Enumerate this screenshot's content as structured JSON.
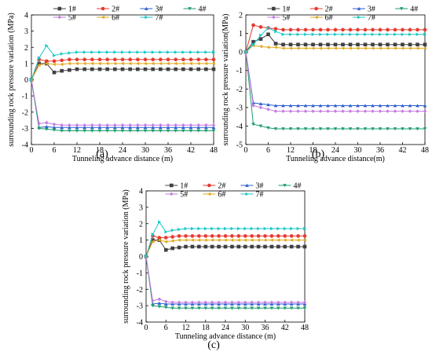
{
  "figure": {
    "panel_labels": [
      "(a)",
      "(b)",
      "(c)"
    ]
  },
  "chart_data": [
    {
      "type": "line",
      "panel": "(a)",
      "xlabel": "Tunneling advance distance (m)",
      "ylabel": "surrounding rock pressure variation (MPa)",
      "xlim": [
        0,
        48
      ],
      "ylim": [
        -4,
        4
      ],
      "xticks": [
        0,
        6,
        12,
        18,
        24,
        30,
        36,
        42,
        48
      ],
      "yticks": [
        -4,
        -3,
        -2,
        -1,
        0,
        1,
        2,
        3,
        4
      ],
      "grid": false,
      "legend_position": "top",
      "x": [
        0,
        2,
        4,
        6,
        8,
        10,
        12,
        14,
        16,
        18,
        20,
        22,
        24,
        26,
        28,
        30,
        32,
        34,
        36,
        38,
        40,
        42,
        44,
        46,
        48
      ],
      "series": [
        {
          "name": "1#",
          "color": "#404040",
          "marker": "square",
          "values": [
            0,
            1.0,
            1.0,
            0.45,
            0.55,
            0.6,
            0.65,
            0.65,
            0.65,
            0.65,
            0.65,
            0.65,
            0.65,
            0.65,
            0.65,
            0.65,
            0.65,
            0.65,
            0.65,
            0.65,
            0.65,
            0.65,
            0.65,
            0.65,
            0.65
          ]
        },
        {
          "name": "2#",
          "color": "#e8392f",
          "marker": "circle",
          "values": [
            0,
            1.25,
            1.15,
            1.15,
            1.2,
            1.25,
            1.25,
            1.25,
            1.25,
            1.25,
            1.25,
            1.25,
            1.25,
            1.25,
            1.25,
            1.25,
            1.25,
            1.25,
            1.25,
            1.25,
            1.25,
            1.25,
            1.25,
            1.25,
            1.25
          ]
        },
        {
          "name": "3#",
          "color": "#2e5fd1",
          "marker": "triangle-up",
          "values": [
            0,
            -2.95,
            -2.9,
            -2.95,
            -2.95,
            -2.95,
            -2.95,
            -2.95,
            -2.95,
            -2.95,
            -2.95,
            -2.95,
            -2.95,
            -2.95,
            -2.95,
            -2.95,
            -2.95,
            -2.95,
            -2.95,
            -2.95,
            -2.95,
            -2.95,
            -2.95,
            -2.95,
            -2.95
          ]
        },
        {
          "name": "4#",
          "color": "#1e9e6e",
          "marker": "triangle-down",
          "values": [
            0,
            -3.0,
            -3.05,
            -3.1,
            -3.15,
            -3.15,
            -3.15,
            -3.15,
            -3.15,
            -3.15,
            -3.15,
            -3.15,
            -3.15,
            -3.15,
            -3.15,
            -3.15,
            -3.15,
            -3.15,
            -3.15,
            -3.15,
            -3.15,
            -3.15,
            -3.15,
            -3.15,
            -3.15
          ]
        },
        {
          "name": "5#",
          "color": "#c57be0",
          "marker": "diamond",
          "values": [
            0,
            -2.7,
            -2.65,
            -2.75,
            -2.8,
            -2.8,
            -2.8,
            -2.8,
            -2.8,
            -2.8,
            -2.8,
            -2.8,
            -2.8,
            -2.8,
            -2.8,
            -2.8,
            -2.8,
            -2.8,
            -2.8,
            -2.8,
            -2.8,
            -2.8,
            -2.8,
            -2.8,
            -2.8
          ]
        },
        {
          "name": "6#",
          "color": "#e0a81b",
          "marker": "triangle-left",
          "values": [
            0,
            0.9,
            1.0,
            0.95,
            0.95,
            1.0,
            1.0,
            1.0,
            1.0,
            1.0,
            1.0,
            1.0,
            1.0,
            1.0,
            1.0,
            1.0,
            1.0,
            1.0,
            1.0,
            1.0,
            1.0,
            1.0,
            1.0,
            1.0,
            1.0
          ]
        },
        {
          "name": "7#",
          "color": "#19c6c8",
          "marker": "triangle-right",
          "values": [
            0,
            1.35,
            2.1,
            1.5,
            1.6,
            1.65,
            1.7,
            1.7,
            1.7,
            1.7,
            1.7,
            1.7,
            1.7,
            1.7,
            1.7,
            1.7,
            1.7,
            1.7,
            1.7,
            1.7,
            1.7,
            1.7,
            1.7,
            1.7,
            1.7
          ]
        }
      ]
    },
    {
      "type": "line",
      "panel": "(b)",
      "xlabel": "Tunneling advance distance(m)",
      "ylabel": "surrounding rock pressure variation(MPa)",
      "xlim": [
        0,
        48
      ],
      "ylim": [
        -5,
        2
      ],
      "xticks": [
        0,
        6,
        12,
        18,
        24,
        30,
        36,
        42,
        48
      ],
      "yticks": [
        -5,
        -4,
        -3,
        -2,
        -1,
        0,
        1,
        2
      ],
      "grid": false,
      "legend_position": "top",
      "x": [
        0,
        2,
        4,
        6,
        8,
        10,
        12,
        14,
        16,
        18,
        20,
        22,
        24,
        26,
        28,
        30,
        32,
        34,
        36,
        38,
        40,
        42,
        44,
        46,
        48
      ],
      "series": [
        {
          "name": "1#",
          "color": "#404040",
          "marker": "square",
          "values": [
            0,
            0.55,
            0.7,
            0.95,
            0.45,
            0.4,
            0.4,
            0.4,
            0.4,
            0.4,
            0.4,
            0.4,
            0.4,
            0.4,
            0.4,
            0.4,
            0.4,
            0.4,
            0.4,
            0.4,
            0.4,
            0.4,
            0.4,
            0.4,
            0.4
          ]
        },
        {
          "name": "2#",
          "color": "#e8392f",
          "marker": "circle",
          "values": [
            0,
            1.45,
            1.35,
            1.3,
            1.25,
            1.2,
            1.2,
            1.2,
            1.2,
            1.2,
            1.2,
            1.2,
            1.2,
            1.2,
            1.2,
            1.2,
            1.2,
            1.2,
            1.2,
            1.2,
            1.2,
            1.2,
            1.2,
            1.2,
            1.2
          ]
        },
        {
          "name": "3#",
          "color": "#2e5fd1",
          "marker": "triangle-up",
          "values": [
            0,
            -2.75,
            -2.8,
            -2.85,
            -2.9,
            -2.9,
            -2.9,
            -2.9,
            -2.9,
            -2.9,
            -2.9,
            -2.9,
            -2.9,
            -2.9,
            -2.9,
            -2.9,
            -2.9,
            -2.9,
            -2.9,
            -2.9,
            -2.9,
            -2.9,
            -2.9,
            -2.9,
            -2.9
          ]
        },
        {
          "name": "4#",
          "color": "#1e9e6e",
          "marker": "triangle-down",
          "values": [
            0,
            -3.9,
            -4.0,
            -4.1,
            -4.15,
            -4.15,
            -4.15,
            -4.15,
            -4.15,
            -4.15,
            -4.15,
            -4.15,
            -4.15,
            -4.15,
            -4.15,
            -4.15,
            -4.15,
            -4.15,
            -4.15,
            -4.15,
            -4.15,
            -4.15,
            -4.15,
            -4.15,
            -4.15
          ]
        },
        {
          "name": "5#",
          "color": "#c57be0",
          "marker": "diamond",
          "values": [
            0,
            -2.9,
            -3.0,
            -3.1,
            -3.2,
            -3.2,
            -3.2,
            -3.2,
            -3.2,
            -3.2,
            -3.2,
            -3.2,
            -3.2,
            -3.2,
            -3.2,
            -3.2,
            -3.2,
            -3.2,
            -3.2,
            -3.2,
            -3.2,
            -3.2,
            -3.2,
            -3.2,
            -3.2
          ]
        },
        {
          "name": "6#",
          "color": "#e0a81b",
          "marker": "triangle-left",
          "values": [
            0,
            0.35,
            0.3,
            0.25,
            0.25,
            0.2,
            0.2,
            0.2,
            0.2,
            0.2,
            0.2,
            0.2,
            0.2,
            0.2,
            0.2,
            0.2,
            0.2,
            0.2,
            0.2,
            0.2,
            0.2,
            0.2,
            0.2,
            0.2,
            0.2
          ]
        },
        {
          "name": "7#",
          "color": "#19c6c8",
          "marker": "triangle-right",
          "values": [
            0,
            0.4,
            0.9,
            1.3,
            1.1,
            0.95,
            0.95,
            0.95,
            0.95,
            0.95,
            0.95,
            0.95,
            0.95,
            0.95,
            0.95,
            0.95,
            0.95,
            0.95,
            0.95,
            0.95,
            0.95,
            0.95,
            0.95,
            0.95,
            0.95
          ]
        }
      ]
    },
    {
      "type": "line",
      "panel": "(c)",
      "xlabel": "Tunneling advance distance (m)",
      "ylabel": "surrounding rock pressure variation (MPa)",
      "xlim": [
        0,
        48
      ],
      "ylim": [
        -4,
        4
      ],
      "xticks": [
        0,
        6,
        12,
        18,
        24,
        30,
        36,
        42,
        48
      ],
      "yticks": [
        -4,
        -3,
        -2,
        -1,
        0,
        1,
        2,
        3,
        4
      ],
      "grid": false,
      "legend_position": "top",
      "x": [
        0,
        2,
        4,
        6,
        8,
        10,
        12,
        14,
        16,
        18,
        20,
        22,
        24,
        26,
        28,
        30,
        32,
        34,
        36,
        38,
        40,
        42,
        44,
        46,
        48
      ],
      "series": [
        {
          "name": "1#",
          "color": "#404040",
          "marker": "square",
          "values": [
            0,
            1.0,
            1.0,
            0.4,
            0.5,
            0.55,
            0.6,
            0.6,
            0.6,
            0.6,
            0.6,
            0.6,
            0.6,
            0.6,
            0.6,
            0.6,
            0.6,
            0.6,
            0.6,
            0.6,
            0.6,
            0.6,
            0.6,
            0.6,
            0.6
          ]
        },
        {
          "name": "2#",
          "color": "#e8392f",
          "marker": "circle",
          "values": [
            0,
            1.25,
            1.15,
            1.15,
            1.2,
            1.25,
            1.25,
            1.25,
            1.25,
            1.25,
            1.25,
            1.25,
            1.25,
            1.25,
            1.25,
            1.25,
            1.25,
            1.25,
            1.25,
            1.25,
            1.25,
            1.25,
            1.25,
            1.25,
            1.25
          ]
        },
        {
          "name": "3#",
          "color": "#2e5fd1",
          "marker": "triangle-up",
          "values": [
            0,
            -2.9,
            -2.85,
            -2.9,
            -2.9,
            -2.9,
            -2.9,
            -2.9,
            -2.9,
            -2.9,
            -2.9,
            -2.9,
            -2.9,
            -2.9,
            -2.9,
            -2.9,
            -2.9,
            -2.9,
            -2.9,
            -2.9,
            -2.9,
            -2.9,
            -2.9,
            -2.9,
            -2.9
          ]
        },
        {
          "name": "4#",
          "color": "#1e9e6e",
          "marker": "triangle-down",
          "values": [
            0,
            -3.0,
            -3.05,
            -3.1,
            -3.15,
            -3.15,
            -3.15,
            -3.15,
            -3.15,
            -3.15,
            -3.15,
            -3.15,
            -3.15,
            -3.15,
            -3.15,
            -3.15,
            -3.15,
            -3.15,
            -3.15,
            -3.15,
            -3.15,
            -3.15,
            -3.15,
            -3.15,
            -3.15
          ]
        },
        {
          "name": "5#",
          "color": "#c57be0",
          "marker": "diamond",
          "values": [
            0,
            -2.7,
            -2.6,
            -2.75,
            -2.8,
            -2.8,
            -2.8,
            -2.8,
            -2.8,
            -2.8,
            -2.8,
            -2.8,
            -2.8,
            -2.8,
            -2.8,
            -2.8,
            -2.8,
            -2.8,
            -2.8,
            -2.8,
            -2.8,
            -2.8,
            -2.8,
            -2.8,
            -2.8
          ]
        },
        {
          "name": "6#",
          "color": "#e0a81b",
          "marker": "triangle-left",
          "values": [
            0,
            0.9,
            1.0,
            0.9,
            0.95,
            1.0,
            1.0,
            1.0,
            1.0,
            1.0,
            1.0,
            1.0,
            1.0,
            1.0,
            1.0,
            1.0,
            1.0,
            1.0,
            1.0,
            1.0,
            1.0,
            1.0,
            1.0,
            1.0,
            1.0
          ]
        },
        {
          "name": "7#",
          "color": "#19c6c8",
          "marker": "triangle-right",
          "values": [
            0,
            1.35,
            2.1,
            1.5,
            1.6,
            1.65,
            1.7,
            1.7,
            1.7,
            1.7,
            1.7,
            1.7,
            1.7,
            1.7,
            1.7,
            1.7,
            1.7,
            1.7,
            1.7,
            1.7,
            1.7,
            1.7,
            1.7,
            1.7,
            1.7
          ]
        }
      ]
    }
  ]
}
